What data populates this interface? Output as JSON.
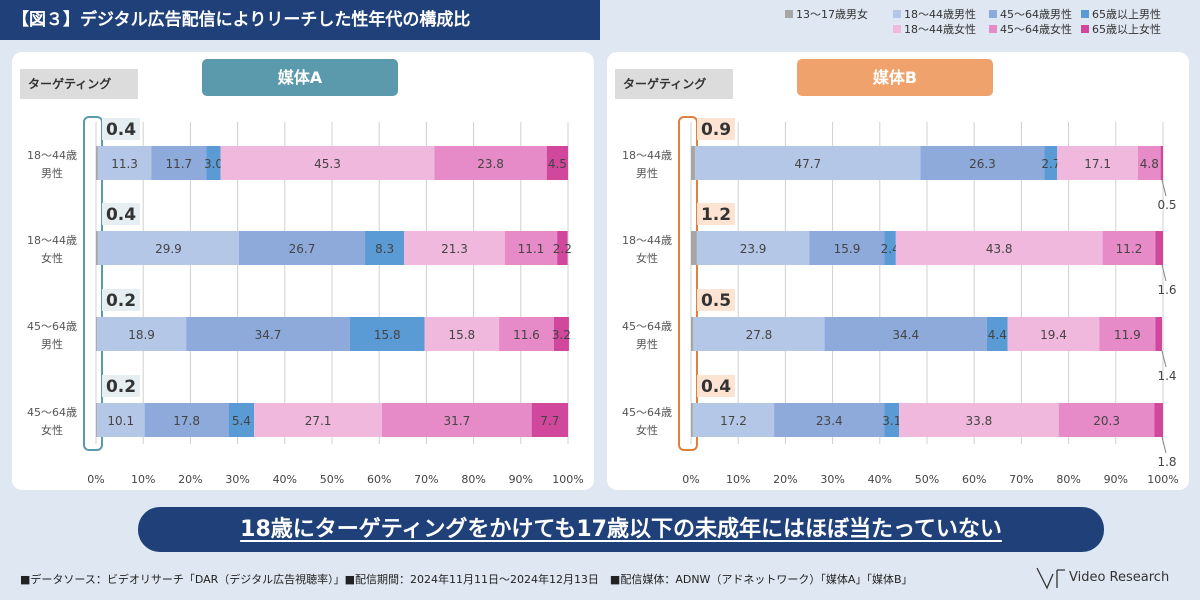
{
  "title": "【図３】デジタル広告配信によりリーチした性年代の構成比",
  "legend": [
    {
      "label": "13～17歳男女",
      "color": "#a6a6a6"
    },
    {
      "label": "18～44歳男性",
      "color": "#b4c7e7"
    },
    {
      "label": "45～64歳男性",
      "color": "#8eaadb"
    },
    {
      "label": "65歳以上男性",
      "color": "#5b9bd5"
    },
    {
      "label": "18～44歳女性",
      "color": "#f0b8dc"
    },
    {
      "label": "45～64歳女性",
      "color": "#e68ac8"
    },
    {
      "label": "65歳以上女性",
      "color": "#d0479c"
    }
  ],
  "targeting_label": "ターゲティング",
  "banner": "18歳にターゲティングをかけても17歳以下の未成年にはほぼ当たっていない",
  "footnote": "■データソース：ビデオリサーチ「DAR（デジタル広告視聴率）」■配信期間：2024年11月11日～2024年12月13日　■配信媒体：ADNW（アドネットワーク）「媒体A」「媒体B」",
  "logo": "Video Research",
  "chart_data": [
    {
      "type": "bar",
      "orientation": "horizontal-stacked-100",
      "title": "媒体A",
      "categories": [
        [
          "18～44歳",
          "男性"
        ],
        [
          "18～44歳",
          "女性"
        ],
        [
          "45～64歳",
          "男性"
        ],
        [
          "45～64歳",
          "女性"
        ]
      ],
      "x_ticks": [
        "0%",
        "10%",
        "20%",
        "30%",
        "40%",
        "50%",
        "60%",
        "70%",
        "80%",
        "90%",
        "100%"
      ],
      "series": [
        {
          "name": "13～17歳男女",
          "values": [
            0.4,
            0.4,
            0.2,
            0.2
          ],
          "labels": [
            "0.4",
            "0.4",
            "0.2",
            "0.2"
          ]
        },
        {
          "name": "18～44歳男性",
          "values": [
            11.3,
            29.9,
            18.9,
            10.1
          ],
          "labels": [
            "11.3",
            "29.9",
            "18.9",
            "10.1"
          ]
        },
        {
          "name": "45～64歳男性",
          "values": [
            11.7,
            26.7,
            34.7,
            17.8
          ],
          "labels": [
            "11.7",
            "26.7",
            "34.7",
            "17.8"
          ]
        },
        {
          "name": "65歳以上男性",
          "values": [
            3.0,
            8.3,
            15.8,
            5.4
          ],
          "labels": [
            "3.0",
            "8.3",
            "15.8",
            "5.4"
          ]
        },
        {
          "name": "18～44歳女性",
          "values": [
            45.3,
            21.3,
            15.8,
            27.1
          ],
          "labels": [
            "45.3",
            "21.3",
            "15.8",
            "27.1"
          ]
        },
        {
          "name": "45～64歳女性",
          "values": [
            23.8,
            11.1,
            11.6,
            31.7
          ],
          "labels": [
            "23.8",
            "11.1",
            "11.6",
            "31.7"
          ]
        },
        {
          "name": "65歳以上女性",
          "values": [
            4.5,
            2.2,
            3.2,
            7.7
          ],
          "labels": [
            "4.5",
            "2.2",
            "3.2",
            "7.7"
          ]
        }
      ],
      "xlim": [
        0,
        100
      ]
    },
    {
      "type": "bar",
      "orientation": "horizontal-stacked-100",
      "title": "媒体B",
      "categories": [
        [
          "18～44歳",
          "男性"
        ],
        [
          "18～44歳",
          "女性"
        ],
        [
          "45～64歳",
          "男性"
        ],
        [
          "45～64歳",
          "女性"
        ]
      ],
      "x_ticks": [
        "0%",
        "10%",
        "20%",
        "30%",
        "40%",
        "50%",
        "60%",
        "70%",
        "80%",
        "90%",
        "100%"
      ],
      "series": [
        {
          "name": "13～17歳男女",
          "values": [
            0.9,
            1.2,
            0.5,
            0.4
          ],
          "labels": [
            "0.9",
            "1.2",
            "0.5",
            "0.4"
          ]
        },
        {
          "name": "18～44歳男性",
          "values": [
            47.7,
            23.9,
            27.8,
            17.2
          ],
          "labels": [
            "47.7",
            "23.9",
            "27.8",
            "17.2"
          ]
        },
        {
          "name": "45～64歳男性",
          "values": [
            26.3,
            15.9,
            34.4,
            23.4
          ],
          "labels": [
            "26.3",
            "15.9",
            "34.4",
            "23.4"
          ]
        },
        {
          "name": "65歳以上男性",
          "values": [
            2.7,
            2.4,
            4.4,
            3.1
          ],
          "labels": [
            "2.7",
            "2.4",
            "4.4",
            "3.1"
          ]
        },
        {
          "name": "18～44歳女性",
          "values": [
            17.1,
            43.8,
            19.4,
            33.8
          ],
          "labels": [
            "17.1",
            "43.8",
            "19.4",
            "33.8"
          ]
        },
        {
          "name": "45～64歳女性",
          "values": [
            4.8,
            11.2,
            11.9,
            20.3
          ],
          "labels": [
            "4.8",
            "11.2",
            "11.9",
            "20.3"
          ]
        },
        {
          "name": "65歳以上女性",
          "values": [
            0.5,
            1.6,
            1.4,
            1.8
          ],
          "labels": [
            "0.5",
            "1.6",
            "1.4",
            "1.8"
          ]
        }
      ],
      "xlim": [
        0,
        100
      ]
    }
  ]
}
